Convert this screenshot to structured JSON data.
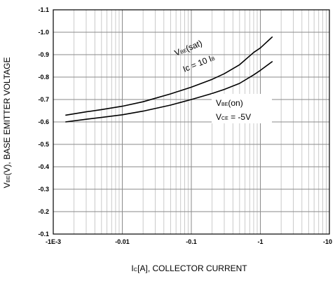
{
  "chart_data": {
    "type": "line",
    "x_scale": "log",
    "x_tick_labels": [
      "-1E-3",
      "-0.01",
      "-0.1",
      "-1",
      "-10"
    ],
    "x_tick_values": [
      0.001,
      0.01,
      0.1,
      1,
      10
    ],
    "xlim": [
      0.001,
      10
    ],
    "y_tick_labels": [
      "-1.1",
      "-1.0",
      "-0.9",
      "-0.8",
      "-0.7",
      "-0.6",
      "-0.5",
      "-0.4",
      "-0.3",
      "-0.2",
      "-0.1"
    ],
    "y_tick_values": [
      1.1,
      1.0,
      0.9,
      0.8,
      0.7,
      0.6,
      0.5,
      0.4,
      0.3,
      0.2,
      0.1
    ],
    "ylim": [
      0.1,
      1.1
    ],
    "grid": true,
    "xlabel": {
      "main": "I",
      "sub": "C",
      "rest": "[A], COLLECTOR CURRENT"
    },
    "ylabel": {
      "main": "V",
      "sub": "BE",
      "rest": "(V), BASE EMITTER VOLTAGE"
    },
    "series": [
      {
        "label_line1": {
          "main": "V",
          "sub": "BE",
          "rest": "(sat)"
        },
        "label_line2": {
          "main": "Ic = 10 I",
          "sub": "B",
          "rest": ""
        },
        "x": [
          0.0015,
          0.003,
          0.005,
          0.01,
          0.02,
          0.05,
          0.1,
          0.2,
          0.3,
          0.5,
          0.8,
          1.0,
          1.5
        ],
        "y": [
          0.63,
          0.645,
          0.655,
          0.67,
          0.69,
          0.725,
          0.755,
          0.79,
          0.815,
          0.855,
          0.91,
          0.93,
          0.98
        ]
      },
      {
        "label_line1": {
          "main": "V",
          "sub": "BE",
          "rest": "(on)"
        },
        "label_line2": {
          "main": "V",
          "sub": "CE",
          "rest": " = -5V"
        },
        "x": [
          0.0015,
          0.003,
          0.005,
          0.01,
          0.02,
          0.05,
          0.1,
          0.2,
          0.3,
          0.5,
          0.8,
          1.0,
          1.5
        ],
        "y": [
          0.6,
          0.612,
          0.62,
          0.632,
          0.648,
          0.675,
          0.7,
          0.727,
          0.745,
          0.772,
          0.81,
          0.83,
          0.87
        ]
      }
    ]
  }
}
